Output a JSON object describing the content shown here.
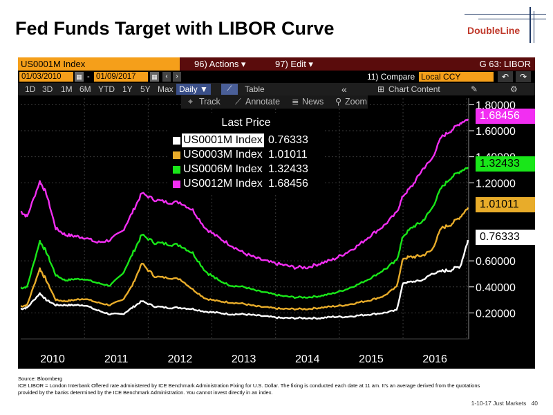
{
  "slide": {
    "title": "Fed Funds Target with LIBOR Curve",
    "logo_text": "DoubleLine",
    "source_line": "Source: Bloomberg",
    "note_line1": "ICE LIBOR = London Interbank Offered rate administered by ICE Benchmark Administration Fixing for U.S. Dollar. The fixing is conducted each date at 11 am. It's an average derived from the quotations",
    "note_line2": "provided by the banks determined by the ICE Benchmark Administration. You cannot invest directly in an index.",
    "footer_date": "1-10-17 Just Markets",
    "page_number": "40"
  },
  "terminal": {
    "ticker_field": "US0001M Index",
    "actions_label": "96) Actions ▾",
    "edit_label": "97) Edit ▾",
    "chart_code": "G 63: LIBOR",
    "start_date": "01/03/2010",
    "end_date": "01/09/2017",
    "date_dash": "-",
    "compare_label": "11) Compare",
    "currency_value": "Local CCY",
    "periods": [
      "1D",
      "3D",
      "1M",
      "6M",
      "YTD",
      "1Y",
      "5Y",
      "Max"
    ],
    "frequency": "Daily ▼",
    "table_label": "Table",
    "collapse_label": "«",
    "chart_content_label": "Chart Content",
    "track_label": "Track",
    "annotate_label": "Annotate",
    "news_label": "News",
    "zoom_label": "Zoom"
  },
  "colors": {
    "background": "#000000",
    "us1m": "#ffffff",
    "us3m": "#e8ac2a",
    "us6m": "#19e619",
    "us12m": "#f22ef2",
    "ticker_orange": "#f59f1a",
    "toolbar_maroon": "#5a0c0c"
  },
  "chart_data": {
    "type": "line",
    "legend_title": "Last Price",
    "x_tick_labels": [
      "2010",
      "2011",
      "2012",
      "2013",
      "2014",
      "2015",
      "2016"
    ],
    "xlim": [
      2010.0,
      2017.03
    ],
    "ylim": [
      0.0,
      1.85
    ],
    "y_tick_labels": [
      "0.20000",
      "0.40000",
      "0.60000",
      "1.20000",
      "1.40000",
      "1.60000",
      "1.80000"
    ],
    "y_ticks": [
      0.2,
      0.4,
      0.6,
      1.2,
      1.4,
      1.6,
      1.8
    ],
    "grid": true,
    "legend_position": "top-center",
    "series": [
      {
        "name": "US0012M Index",
        "last": "1.68456",
        "color": "#f22ef2",
        "x": [
          2010.0,
          2010.1,
          2010.3,
          2010.4,
          2010.55,
          2010.7,
          2010.85,
          2011.0,
          2011.2,
          2011.4,
          2011.6,
          2011.75,
          2011.9,
          2012.1,
          2012.3,
          2012.5,
          2012.7,
          2012.9,
          2013.1,
          2013.3,
          2013.5,
          2013.7,
          2013.9,
          2014.1,
          2014.3,
          2014.5,
          2014.7,
          2014.9,
          2015.1,
          2015.3,
          2015.5,
          2015.7,
          2015.9,
          2016.0,
          2016.15,
          2016.3,
          2016.45,
          2016.6,
          2016.75,
          2016.9,
          2017.02
        ],
        "y": [
          0.98,
          0.94,
          1.21,
          1.12,
          0.85,
          0.8,
          0.79,
          0.78,
          0.74,
          0.76,
          0.83,
          0.97,
          1.12,
          1.07,
          1.05,
          1.05,
          0.99,
          0.85,
          0.78,
          0.72,
          0.66,
          0.62,
          0.59,
          0.57,
          0.55,
          0.55,
          0.58,
          0.61,
          0.66,
          0.72,
          0.8,
          0.87,
          0.97,
          1.1,
          1.18,
          1.3,
          1.38,
          1.55,
          1.6,
          1.66,
          1.69
        ]
      },
      {
        "name": "US0006M Index",
        "last": "1.32433",
        "color": "#19e619",
        "x": [
          2010.0,
          2010.1,
          2010.3,
          2010.4,
          2010.55,
          2010.7,
          2010.85,
          2011.0,
          2011.2,
          2011.4,
          2011.6,
          2011.75,
          2011.9,
          2012.1,
          2012.3,
          2012.5,
          2012.7,
          2012.9,
          2013.1,
          2013.3,
          2013.5,
          2013.7,
          2013.9,
          2014.1,
          2014.3,
          2014.5,
          2014.7,
          2014.9,
          2015.1,
          2015.3,
          2015.5,
          2015.7,
          2015.9,
          2016.0,
          2016.15,
          2016.3,
          2016.45,
          2016.6,
          2016.75,
          2016.9,
          2017.02
        ],
        "y": [
          0.39,
          0.4,
          0.75,
          0.67,
          0.49,
          0.45,
          0.46,
          0.46,
          0.43,
          0.41,
          0.5,
          0.65,
          0.8,
          0.74,
          0.73,
          0.72,
          0.66,
          0.52,
          0.45,
          0.41,
          0.4,
          0.37,
          0.35,
          0.33,
          0.32,
          0.32,
          0.33,
          0.35,
          0.38,
          0.42,
          0.47,
          0.53,
          0.6,
          0.79,
          0.86,
          0.9,
          1.0,
          1.16,
          1.24,
          1.29,
          1.32
        ]
      },
      {
        "name": "US0003M Index",
        "last": "1.01011",
        "color": "#e8ac2a",
        "x": [
          2010.0,
          2010.1,
          2010.3,
          2010.4,
          2010.55,
          2010.7,
          2010.85,
          2011.0,
          2011.2,
          2011.4,
          2011.6,
          2011.75,
          2011.9,
          2012.1,
          2012.3,
          2012.5,
          2012.7,
          2012.9,
          2013.1,
          2013.3,
          2013.5,
          2013.7,
          2013.9,
          2014.1,
          2014.3,
          2014.5,
          2014.7,
          2014.9,
          2015.1,
          2015.3,
          2015.5,
          2015.7,
          2015.9,
          2016.0,
          2016.15,
          2016.3,
          2016.45,
          2016.6,
          2016.75,
          2016.9,
          2017.02
        ],
        "y": [
          0.25,
          0.26,
          0.54,
          0.45,
          0.3,
          0.29,
          0.3,
          0.31,
          0.28,
          0.26,
          0.3,
          0.41,
          0.58,
          0.48,
          0.47,
          0.46,
          0.38,
          0.31,
          0.29,
          0.28,
          0.27,
          0.25,
          0.24,
          0.23,
          0.23,
          0.23,
          0.24,
          0.25,
          0.26,
          0.28,
          0.3,
          0.33,
          0.4,
          0.62,
          0.63,
          0.64,
          0.68,
          0.85,
          0.88,
          0.94,
          1.01
        ]
      },
      {
        "name": "US0001M Index",
        "last": "0.76333",
        "color": "#ffffff",
        "x": [
          2010.0,
          2010.1,
          2010.3,
          2010.4,
          2010.55,
          2010.7,
          2010.85,
          2011.0,
          2011.2,
          2011.4,
          2011.6,
          2011.75,
          2011.9,
          2012.1,
          2012.3,
          2012.5,
          2012.7,
          2012.9,
          2013.1,
          2013.3,
          2013.5,
          2013.7,
          2013.9,
          2014.1,
          2014.3,
          2014.5,
          2014.7,
          2014.9,
          2015.1,
          2015.3,
          2015.5,
          2015.7,
          2015.9,
          2016.0,
          2016.15,
          2016.3,
          2016.45,
          2016.6,
          2016.75,
          2016.9,
          2017.02
        ],
        "y": [
          0.23,
          0.24,
          0.35,
          0.3,
          0.26,
          0.26,
          0.26,
          0.26,
          0.22,
          0.19,
          0.19,
          0.24,
          0.29,
          0.25,
          0.24,
          0.24,
          0.23,
          0.21,
          0.2,
          0.19,
          0.19,
          0.18,
          0.17,
          0.16,
          0.16,
          0.16,
          0.16,
          0.17,
          0.17,
          0.18,
          0.19,
          0.2,
          0.22,
          0.43,
          0.44,
          0.45,
          0.5,
          0.52,
          0.53,
          0.56,
          0.76
        ]
      }
    ]
  }
}
